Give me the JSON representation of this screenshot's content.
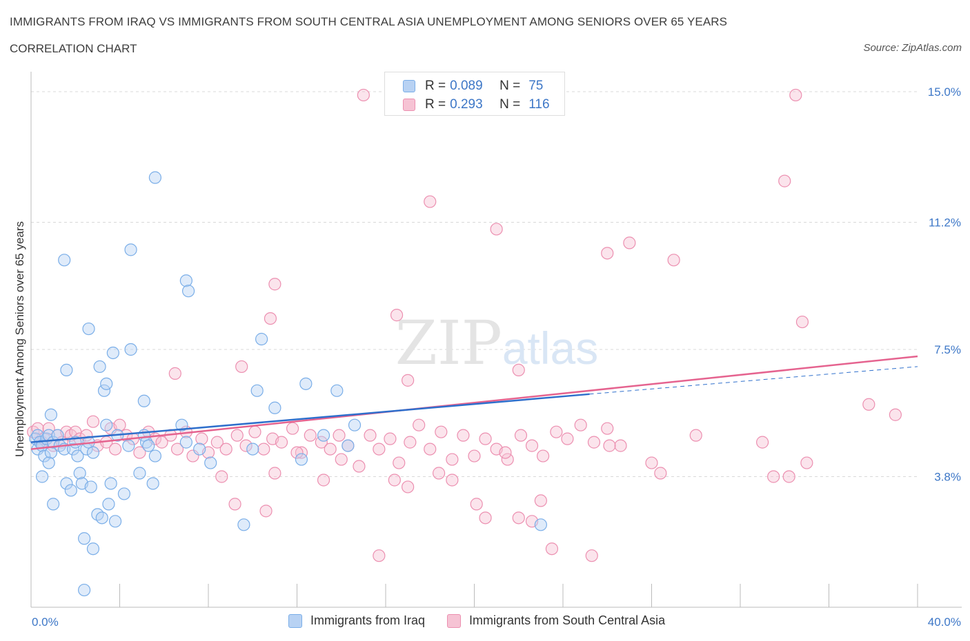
{
  "header": {
    "title": "IMMIGRANTS FROM IRAQ VS IMMIGRANTS FROM SOUTH CENTRAL ASIA UNEMPLOYMENT AMONG SENIORS OVER 65 YEARS",
    "subtitle": "CORRELATION CHART",
    "source": "Source: ZipAtlas.com"
  },
  "colors": {
    "blue": "#7aaee8",
    "blue_fill": "#b8d2f3",
    "blue_line": "#2e6fcc",
    "pink": "#ec8fb0",
    "pink_fill": "#f6c3d4",
    "pink_line": "#e5638f",
    "grid": "#d8d8d8",
    "tick_label": "#3d77c7"
  },
  "legend": {
    "rows": [
      {
        "r_label": "R =",
        "r_value": "0.089",
        "n_label": "N =",
        "n_value": "75"
      },
      {
        "r_label": "R =",
        "r_value": "0.293",
        "n_label": "N =",
        "n_value": "116"
      }
    ]
  },
  "bottom_legend": {
    "series1": "Immigrants from Iraq",
    "series2": "Immigrants from South Central Asia"
  },
  "watermark": {
    "part1": "ZIP",
    "part2": "atlas"
  },
  "chart_data": {
    "type": "scatter",
    "title": "IMMIGRANTS FROM IRAQ VS IMMIGRANTS FROM SOUTH CENTRAL ASIA UNEMPLOYMENT AMONG SENIORS OVER 65 YEARS",
    "xlabel": "",
    "ylabel": "Unemployment Among Seniors over 65 years",
    "xlim": [
      0,
      40
    ],
    "ylim": [
      0,
      15.3
    ],
    "x_tick_labels": [
      "0.0%",
      "40.0%"
    ],
    "y_ticks": [
      3.8,
      7.5,
      11.2,
      15.0
    ],
    "y_tick_labels": [
      "3.8%",
      "7.5%",
      "11.2%",
      "15.0%"
    ],
    "grid": true,
    "series": [
      {
        "name": "Immigrants from Iraq",
        "R": 0.089,
        "N": 75,
        "trend": {
          "x": [
            0,
            25.2
          ],
          "y": [
            4.8,
            6.2
          ]
        },
        "trend_dashed": {
          "x": [
            25.2,
            40
          ],
          "y": [
            6.2,
            7.0
          ]
        },
        "points": [
          [
            0.2,
            4.9
          ],
          [
            0.3,
            4.6
          ],
          [
            0.3,
            5.0
          ],
          [
            0.4,
            4.8
          ],
          [
            0.5,
            4.7
          ],
          [
            0.6,
            4.4
          ],
          [
            0.7,
            4.9
          ],
          [
            0.8,
            5.0
          ],
          [
            0.9,
            4.5
          ],
          [
            1.0,
            4.8
          ],
          [
            0.5,
            3.8
          ],
          [
            0.8,
            4.2
          ],
          [
            1.0,
            3.0
          ],
          [
            1.2,
            5.0
          ],
          [
            1.3,
            4.7
          ],
          [
            1.5,
            4.6
          ],
          [
            1.6,
            3.6
          ],
          [
            1.8,
            3.4
          ],
          [
            1.9,
            4.6
          ],
          [
            2.0,
            4.8
          ],
          [
            2.1,
            4.4
          ],
          [
            2.2,
            3.9
          ],
          [
            2.3,
            3.6
          ],
          [
            2.4,
            2.0
          ],
          [
            2.5,
            4.6
          ],
          [
            2.6,
            4.8
          ],
          [
            2.7,
            3.5
          ],
          [
            2.8,
            4.5
          ],
          [
            3.0,
            2.7
          ],
          [
            3.2,
            2.6
          ],
          [
            3.4,
            5.3
          ],
          [
            3.5,
            3.0
          ],
          [
            3.6,
            3.6
          ],
          [
            3.7,
            7.4
          ],
          [
            3.8,
            2.5
          ],
          [
            3.9,
            5.0
          ],
          [
            4.2,
            3.3
          ],
          [
            4.4,
            4.7
          ],
          [
            4.9,
            3.9
          ],
          [
            4.5,
            7.5
          ],
          [
            5.1,
            5.0
          ],
          [
            5.2,
            4.8
          ],
          [
            5.3,
            4.7
          ],
          [
            5.5,
            3.6
          ],
          [
            5.6,
            4.4
          ],
          [
            6.8,
            5.3
          ],
          [
            7.0,
            4.8
          ],
          [
            7.6,
            4.6
          ],
          [
            8.1,
            4.2
          ],
          [
            9.6,
            2.4
          ],
          [
            10.0,
            4.6
          ],
          [
            10.2,
            6.3
          ],
          [
            11.0,
            5.8
          ],
          [
            12.2,
            4.3
          ],
          [
            12.4,
            6.5
          ],
          [
            13.2,
            5.0
          ],
          [
            13.8,
            6.3
          ],
          [
            14.3,
            4.7
          ],
          [
            14.6,
            5.3
          ],
          [
            23.0,
            2.4
          ],
          [
            2.8,
            1.7
          ],
          [
            2.4,
            0.5
          ],
          [
            1.5,
            10.1
          ],
          [
            4.5,
            10.4
          ],
          [
            5.6,
            12.5
          ],
          [
            7.0,
            9.5
          ],
          [
            7.1,
            9.2
          ],
          [
            10.4,
            7.8
          ],
          [
            2.6,
            8.1
          ],
          [
            1.6,
            6.9
          ],
          [
            3.1,
            7.0
          ],
          [
            3.3,
            6.3
          ],
          [
            3.4,
            6.5
          ],
          [
            0.9,
            5.6
          ],
          [
            5.1,
            6.0
          ]
        ]
      },
      {
        "name": "Immigrants from South Central Asia",
        "R": 0.293,
        "N": 116,
        "trend": {
          "x": [
            0,
            40
          ],
          "y": [
            4.6,
            7.3
          ]
        },
        "points": [
          [
            0.1,
            5.1
          ],
          [
            0.3,
            5.2
          ],
          [
            0.5,
            4.8
          ],
          [
            0.6,
            4.9
          ],
          [
            0.8,
            5.2
          ],
          [
            1.0,
            4.7
          ],
          [
            1.2,
            5.0
          ],
          [
            1.4,
            4.8
          ],
          [
            1.6,
            5.1
          ],
          [
            1.8,
            5.0
          ],
          [
            2.0,
            5.1
          ],
          [
            2.2,
            4.9
          ],
          [
            2.5,
            5.0
          ],
          [
            2.8,
            5.4
          ],
          [
            3.0,
            4.7
          ],
          [
            3.4,
            4.8
          ],
          [
            3.6,
            5.2
          ],
          [
            3.8,
            4.6
          ],
          [
            4.0,
            5.3
          ],
          [
            4.3,
            5.0
          ],
          [
            4.6,
            4.9
          ],
          [
            4.9,
            4.5
          ],
          [
            5.3,
            5.1
          ],
          [
            5.6,
            4.9
          ],
          [
            5.9,
            4.8
          ],
          [
            6.3,
            5.0
          ],
          [
            6.6,
            4.6
          ],
          [
            7.0,
            5.1
          ],
          [
            7.3,
            4.4
          ],
          [
            7.7,
            4.9
          ],
          [
            8.0,
            4.5
          ],
          [
            8.4,
            4.8
          ],
          [
            8.8,
            4.6
          ],
          [
            9.3,
            5.0
          ],
          [
            9.7,
            4.7
          ],
          [
            10.1,
            5.1
          ],
          [
            10.5,
            4.6
          ],
          [
            10.9,
            4.9
          ],
          [
            11.3,
            4.8
          ],
          [
            11.8,
            5.2
          ],
          [
            12.2,
            4.5
          ],
          [
            12.6,
            5.0
          ],
          [
            13.1,
            4.8
          ],
          [
            13.5,
            4.6
          ],
          [
            13.9,
            5.0
          ],
          [
            14.3,
            4.7
          ],
          [
            14.8,
            4.1
          ],
          [
            15.3,
            5.0
          ],
          [
            15.7,
            4.6
          ],
          [
            16.2,
            4.9
          ],
          [
            16.6,
            4.2
          ],
          [
            17.1,
            4.8
          ],
          [
            17.5,
            5.3
          ],
          [
            18.0,
            4.6
          ],
          [
            18.5,
            5.1
          ],
          [
            19.0,
            4.3
          ],
          [
            19.5,
            5.0
          ],
          [
            20.0,
            4.4
          ],
          [
            20.5,
            4.9
          ],
          [
            21.0,
            4.6
          ],
          [
            21.5,
            4.3
          ],
          [
            22.1,
            5.0
          ],
          [
            22.6,
            4.7
          ],
          [
            23.1,
            4.4
          ],
          [
            23.7,
            5.1
          ],
          [
            24.2,
            4.9
          ],
          [
            24.8,
            5.3
          ],
          [
            25.4,
            4.8
          ],
          [
            26.0,
            5.2
          ],
          [
            26.6,
            4.7
          ],
          [
            28.0,
            4.2
          ],
          [
            30.0,
            5.0
          ],
          [
            33.0,
            4.8
          ],
          [
            34.2,
            3.8
          ],
          [
            35.0,
            4.2
          ],
          [
            37.8,
            5.9
          ],
          [
            39.0,
            5.6
          ],
          [
            15.7,
            1.5
          ],
          [
            20.1,
            3.0
          ],
          [
            22.0,
            2.6
          ],
          [
            22.6,
            2.5
          ],
          [
            23.0,
            3.1
          ],
          [
            23.5,
            1.7
          ],
          [
            25.3,
            1.5
          ],
          [
            20.5,
            2.6
          ],
          [
            12.0,
            4.5
          ],
          [
            14.0,
            4.3
          ],
          [
            10.6,
            2.8
          ],
          [
            9.2,
            3.0
          ],
          [
            8.6,
            3.8
          ],
          [
            11.0,
            3.9
          ],
          [
            13.2,
            3.7
          ],
          [
            16.4,
            3.7
          ],
          [
            17.0,
            3.5
          ],
          [
            18.4,
            3.9
          ],
          [
            19.0,
            3.7
          ],
          [
            26.1,
            4.7
          ],
          [
            28.4,
            3.9
          ],
          [
            21.4,
            4.5
          ],
          [
            33.5,
            3.8
          ],
          [
            15.0,
            14.9
          ],
          [
            34.5,
            14.9
          ],
          [
            18.0,
            11.8
          ],
          [
            21.0,
            11.0
          ],
          [
            26.0,
            10.3
          ],
          [
            27.0,
            10.6
          ],
          [
            29.0,
            10.1
          ],
          [
            34.0,
            12.4
          ],
          [
            11.0,
            9.4
          ],
          [
            10.8,
            8.4
          ],
          [
            16.5,
            8.5
          ],
          [
            34.8,
            8.3
          ],
          [
            22.0,
            6.9
          ],
          [
            6.5,
            6.8
          ],
          [
            9.5,
            7.0
          ],
          [
            17.0,
            6.6
          ]
        ]
      }
    ]
  }
}
